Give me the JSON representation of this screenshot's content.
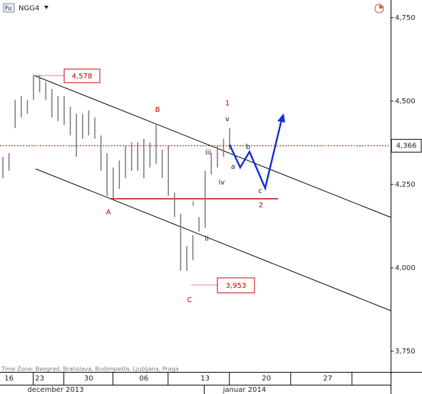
{
  "chart_data": {
    "type": "ohlc",
    "symbol": "NGG4",
    "categories": [
      null,
      "16",
      null,
      null,
      null,
      null,
      "23",
      null,
      null,
      null,
      null,
      null,
      null,
      null,
      "30",
      null,
      null,
      null,
      null,
      null,
      null,
      null,
      null,
      "06",
      null,
      null,
      null,
      null,
      null,
      null,
      null,
      null,
      null,
      "13",
      null,
      null,
      null,
      null,
      null,
      null,
      null,
      null,
      null,
      "20",
      null,
      null,
      null,
      null,
      null,
      null,
      null,
      null,
      null,
      "27",
      null,
      null,
      null,
      null,
      null,
      null,
      null,
      null,
      null,
      null
    ],
    "high": [
      4333,
      4344,
      4504,
      4515,
      4504,
      4579,
      4579,
      4557,
      4536,
      4515,
      4515,
      4483,
      4462,
      4462,
      4472,
      4451,
      4397,
      4344,
      4301,
      4322,
      4365,
      4376,
      4376,
      4387,
      4376,
      4429,
      4354,
      4365,
      4226,
      4162,
      4066,
      4098,
      4152,
      4291,
      4344,
      4365,
      4387,
      4419,
      null,
      null,
      null,
      null,
      null,
      null,
      null,
      null,
      null,
      null,
      null,
      null,
      null,
      null,
      null,
      null,
      null,
      null,
      null,
      null,
      null,
      null,
      null,
      null,
      null,
      null
    ],
    "low": [
      4269,
      4291,
      4419,
      4451,
      4462,
      4504,
      4526,
      4504,
      4451,
      4440,
      4429,
      4397,
      4333,
      4387,
      4397,
      4387,
      4291,
      4216,
      4205,
      4237,
      4269,
      4291,
      4291,
      4269,
      4301,
      4312,
      4269,
      4216,
      4152,
      3991,
      3991,
      4023,
      4109,
      4120,
      4280,
      4301,
      4333,
      4355,
      null,
      null,
      null,
      null,
      null,
      null,
      null,
      null,
      null,
      null,
      null,
      null,
      null,
      null,
      null,
      null,
      null,
      null,
      null,
      null,
      null,
      null,
      null,
      null,
      null,
      null
    ],
    "color": "#777777",
    "ylim": [
      3688,
      4803
    ],
    "yticks": [
      {
        "value": 3750,
        "label": "3,750"
      },
      {
        "value": 4000,
        "label": "4,000"
      },
      {
        "value": 4250,
        "label": "4,250"
      },
      {
        "value": 4500,
        "label": "4,500"
      },
      {
        "value": 4750,
        "label": "4,750"
      }
    ],
    "grid": false,
    "months": [
      "december 2013",
      "januar 2014"
    ],
    "current_price": {
      "value": 4366,
      "label": "4,366",
      "color": "#c00000"
    },
    "annotations": [
      "4,578",
      "3,953"
    ],
    "waves": [
      "1",
      "v",
      "iii",
      "iv",
      "i",
      "ii",
      "A",
      "B",
      "C",
      "a",
      "b",
      "c",
      "2"
    ],
    "timezone": "Time Zone: Beograd, Bratislava, Budimpešta, Ljubljana, Praga"
  }
}
